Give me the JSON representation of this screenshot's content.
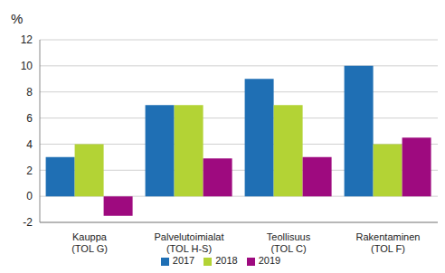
{
  "chart_data": {
    "type": "bar",
    "ylabel": "%",
    "categories": [
      "Kauppa\n(TOL G)",
      "Palvelutoimialat\n(TOL H-S)",
      "Teollisuus\n(TOL C)",
      "Rakentaminen\n(TOL F)"
    ],
    "series": [
      {
        "name": "2017",
        "color": "#1f6fb4",
        "values": [
          3,
          7,
          9,
          10
        ]
      },
      {
        "name": "2018",
        "color": "#b3d335",
        "values": [
          4,
          7,
          7,
          4
        ]
      },
      {
        "name": "2019",
        "color": "#9e0a7f",
        "values": [
          -1.5,
          2.9,
          3,
          4.5
        ]
      }
    ],
    "ylim": [
      -2,
      12
    ],
    "yticks": [
      -2,
      0,
      2,
      4,
      6,
      8,
      10,
      12
    ],
    "grid": true,
    "legend": "bottom"
  }
}
